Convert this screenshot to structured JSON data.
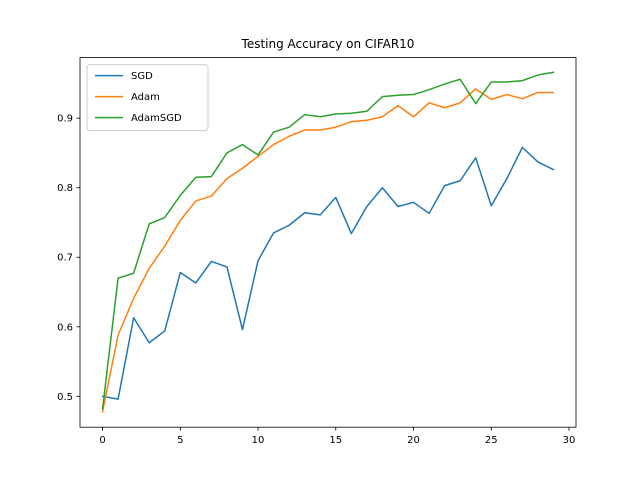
{
  "chart_data": {
    "type": "line",
    "title": "Testing Accuracy on CIFAR10",
    "xlabel": "",
    "ylabel": "",
    "x": [
      0,
      1,
      2,
      3,
      4,
      5,
      6,
      7,
      8,
      9,
      10,
      11,
      12,
      13,
      14,
      15,
      16,
      17,
      18,
      19,
      20,
      21,
      22,
      23,
      24,
      25,
      26,
      27,
      28,
      29
    ],
    "xlim": [
      -1.45,
      30.45
    ],
    "ylim": [
      0.4556,
      0.9871
    ],
    "xticks": [
      0,
      5,
      10,
      15,
      20,
      25,
      30
    ],
    "xtick_labels": [
      "0",
      "5",
      "10",
      "15",
      "20",
      "25",
      "30"
    ],
    "yticks": [
      0.5,
      0.6,
      0.7,
      0.8,
      0.9
    ],
    "ytick_labels": [
      "0.5",
      "0.6",
      "0.7",
      "0.8",
      "0.9"
    ],
    "grid": false,
    "legend": "upper-left",
    "series": [
      {
        "name": "SGD",
        "color": "#1f77b4",
        "values": [
          0.5,
          0.496,
          0.613,
          0.577,
          0.594,
          0.678,
          0.663,
          0.694,
          0.686,
          0.596,
          0.695,
          0.735,
          0.746,
          0.764,
          0.761,
          0.786,
          0.734,
          0.773,
          0.8,
          0.773,
          0.779,
          0.763,
          0.803,
          0.81,
          0.843,
          0.774,
          0.813,
          0.858,
          0.837,
          0.826
        ]
      },
      {
        "name": "Adam",
        "color": "#ff7f0e",
        "values": [
          0.478,
          0.588,
          0.641,
          0.684,
          0.716,
          0.753,
          0.781,
          0.788,
          0.813,
          0.828,
          0.845,
          0.862,
          0.874,
          0.883,
          0.883,
          0.887,
          0.895,
          0.897,
          0.902,
          0.918,
          0.902,
          0.922,
          0.915,
          0.922,
          0.942,
          0.927,
          0.934,
          0.928,
          0.937,
          0.937
        ]
      },
      {
        "name": "AdamSGD",
        "color": "#2ca02c",
        "values": [
          0.482,
          0.67,
          0.677,
          0.748,
          0.757,
          0.789,
          0.815,
          0.816,
          0.85,
          0.862,
          0.847,
          0.88,
          0.887,
          0.905,
          0.902,
          0.906,
          0.907,
          0.91,
          0.931,
          0.933,
          0.934,
          0.941,
          0.949,
          0.956,
          0.921,
          0.952,
          0.952,
          0.954,
          0.962,
          0.966
        ]
      }
    ]
  }
}
